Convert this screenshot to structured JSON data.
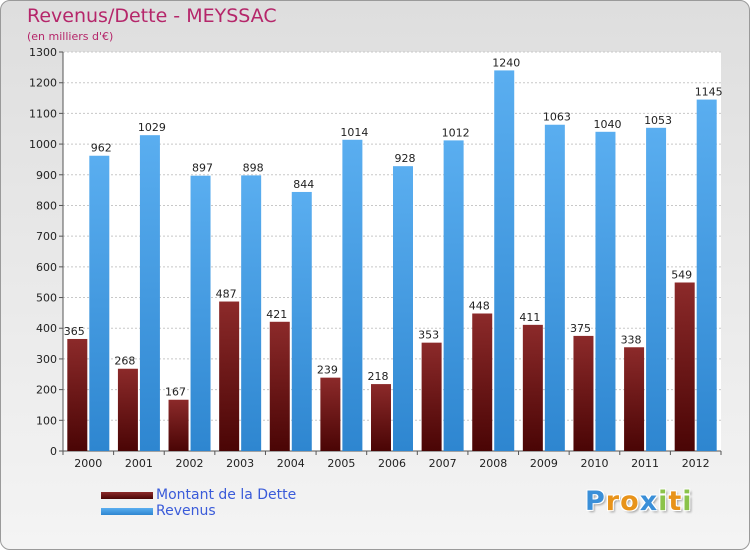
{
  "header": {
    "title": "Revenus/Dette - MEYSSAC",
    "subtitle": "(en milliers d'€)"
  },
  "chart_data": {
    "type": "bar",
    "categories": [
      "2000",
      "2001",
      "2002",
      "2003",
      "2004",
      "2005",
      "2006",
      "2007",
      "2008",
      "2009",
      "2010",
      "2011",
      "2012"
    ],
    "series": [
      {
        "name": "Montant de la Dette",
        "color": "#7a1a1a",
        "values": [
          365,
          268,
          167,
          487,
          421,
          239,
          218,
          353,
          448,
          411,
          375,
          338,
          549
        ]
      },
      {
        "name": "Revenus",
        "color": "#4a9fe0",
        "values": [
          962,
          1029,
          897,
          898,
          844,
          1014,
          928,
          1012,
          1240,
          1063,
          1040,
          1053,
          1145
        ]
      }
    ],
    "yticks": [
      0,
      100,
      200,
      300,
      400,
      500,
      600,
      700,
      800,
      900,
      1000,
      1100,
      1200,
      1300
    ],
    "ylim": [
      0,
      1300
    ],
    "grid": true,
    "legend_position": "bottom-left"
  },
  "legend": {
    "items": [
      {
        "label": "Montant de la Dette",
        "color": "#6b0f0f"
      },
      {
        "label": "Revenus",
        "color": "#4a9fe0"
      }
    ]
  },
  "logo": {
    "letters": [
      "P",
      "r",
      "o",
      "x",
      "i",
      "t",
      "i"
    ],
    "colors": [
      "#3a8fd8",
      "#e8931a",
      "#e8931a",
      "#3a8fd8",
      "#8bc34a",
      "#e8931a",
      "#8bc34a"
    ]
  }
}
